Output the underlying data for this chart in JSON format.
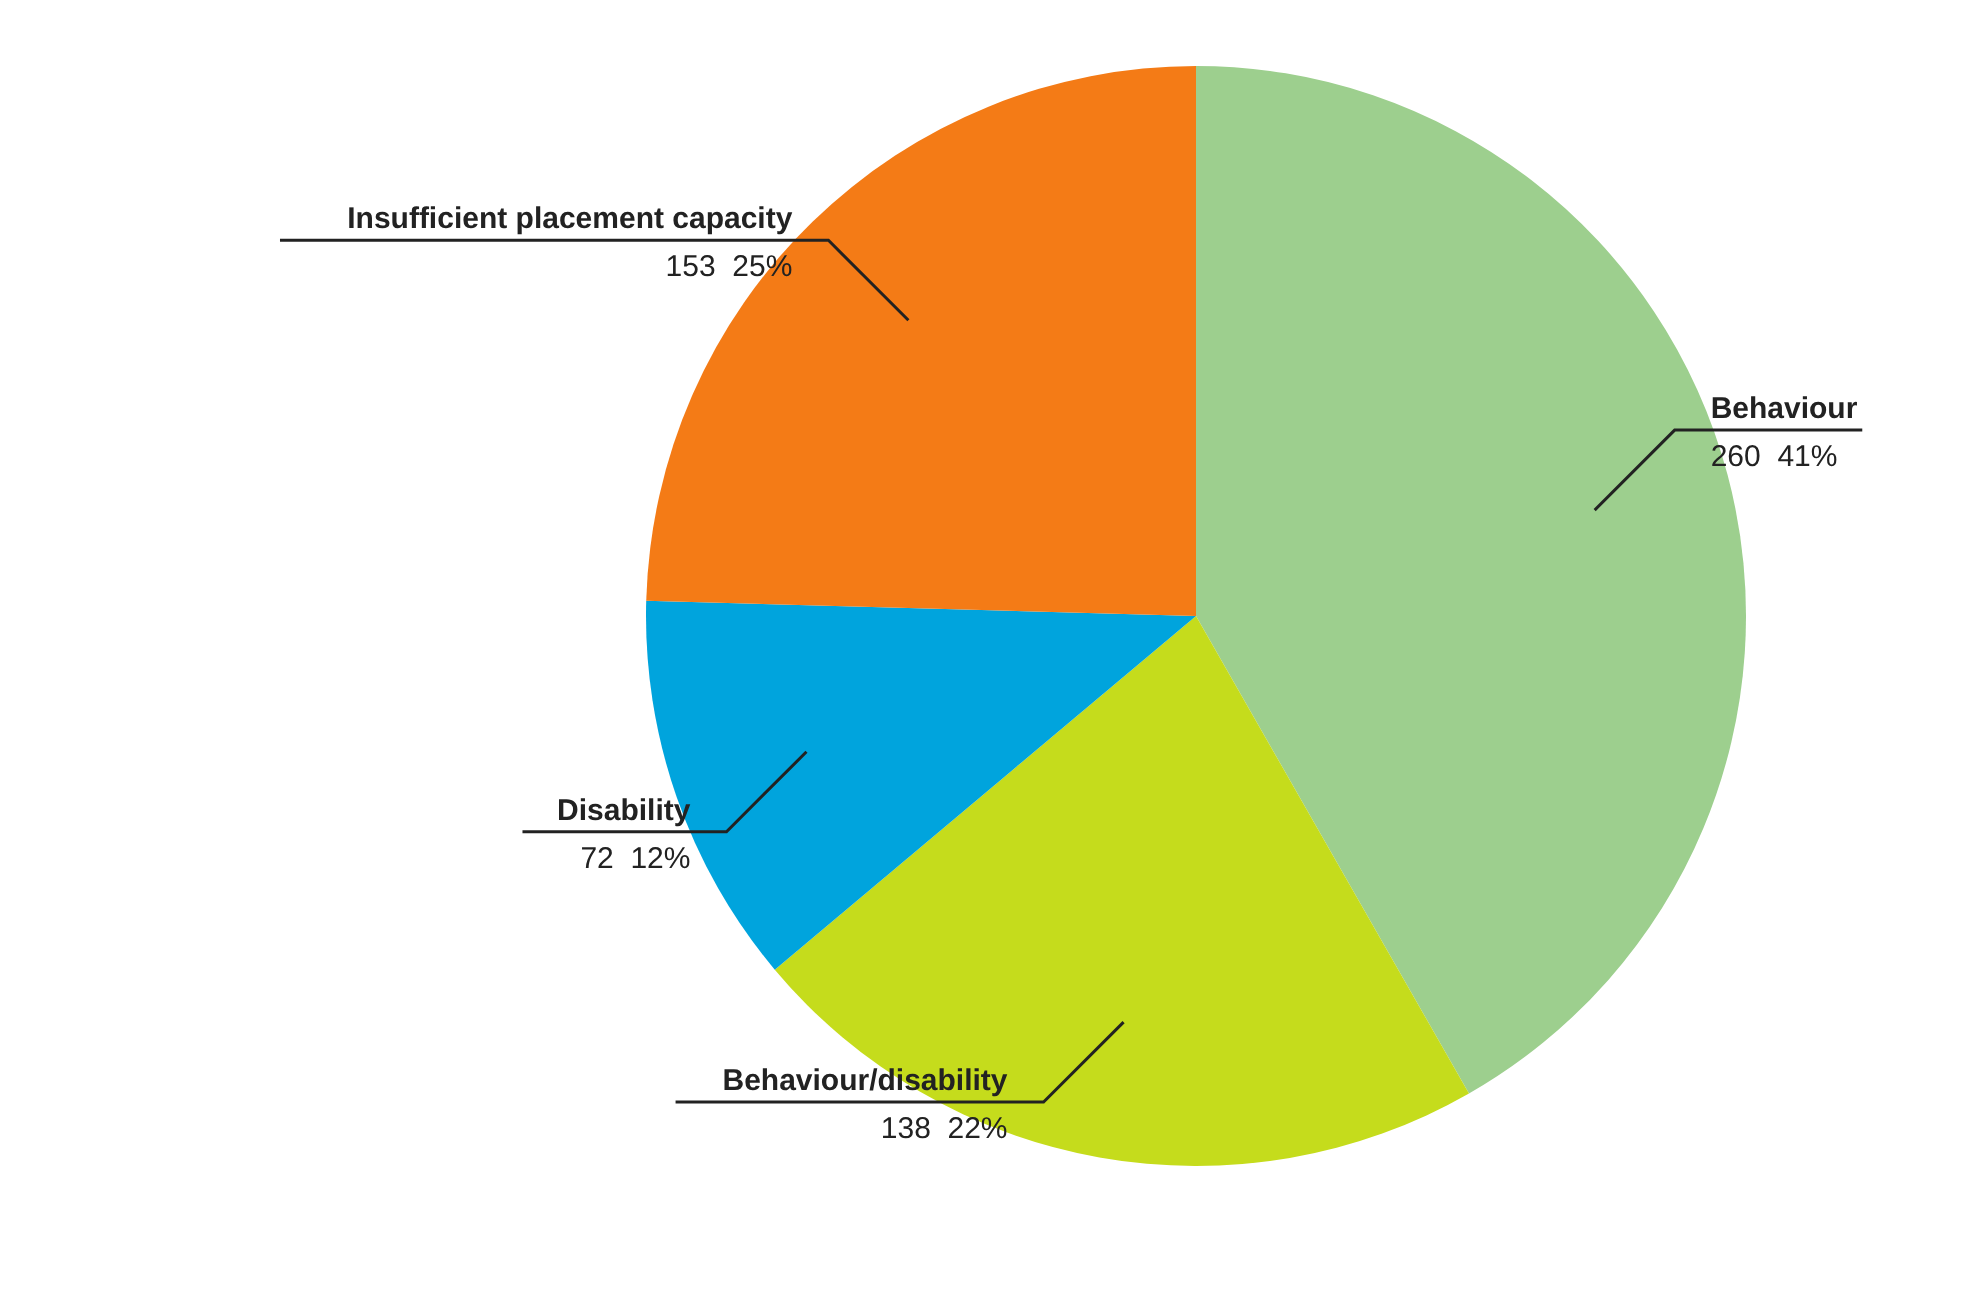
{
  "chart_data": {
    "type": "pie",
    "categories": [
      "Behaviour",
      "Behaviour/disability",
      "Disability",
      "Insufficient placement capacity"
    ],
    "values": [
      260,
      138,
      72,
      153
    ],
    "value_labels": [
      "260  41%",
      "138  22%",
      "72  12%",
      "153  25%"
    ],
    "colors": [
      "#9dcf8e",
      "#c5dc1c",
      "#00a4dd",
      "#f47b16"
    ]
  }
}
